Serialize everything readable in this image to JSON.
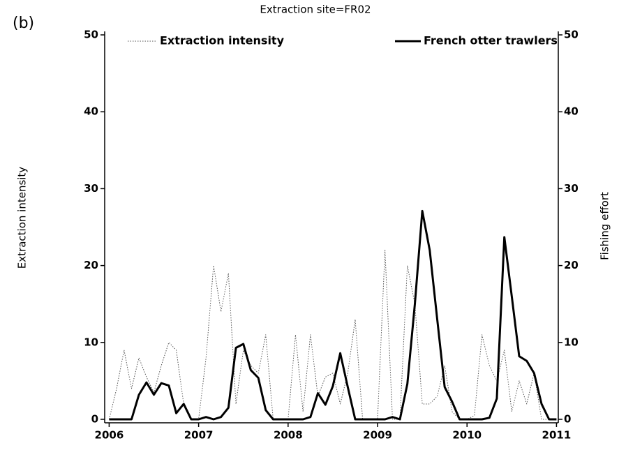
{
  "panel_label": "(b)",
  "chart_data": {
    "type": "line",
    "title": "Extraction site=FR02",
    "ylabel": "Extraction intensity",
    "y2label": "Fishing effort",
    "x": [
      2006,
      2006.083,
      2006.167,
      2006.25,
      2006.333,
      2006.417,
      2006.5,
      2006.583,
      2006.667,
      2006.75,
      2006.833,
      2006.917,
      2007,
      2007.083,
      2007.167,
      2007.25,
      2007.333,
      2007.417,
      2007.5,
      2007.583,
      2007.667,
      2007.75,
      2007.833,
      2007.917,
      2008,
      2008.083,
      2008.167,
      2008.25,
      2008.333,
      2008.417,
      2008.5,
      2008.583,
      2008.667,
      2008.75,
      2008.833,
      2008.917,
      2009,
      2009.083,
      2009.167,
      2009.25,
      2009.333,
      2009.417,
      2009.5,
      2009.583,
      2009.667,
      2009.75,
      2009.833,
      2009.917,
      2010,
      2010.083,
      2010.167,
      2010.25,
      2010.333,
      2010.417,
      2010.5,
      2010.583,
      2010.667,
      2010.75,
      2010.833,
      2010.917,
      2011
    ],
    "series": [
      {
        "name": "Extraction intensity",
        "color": "#555555",
        "style": "dotted",
        "axis": "y",
        "values": [
          0,
          4,
          9,
          4,
          8,
          5.5,
          3.5,
          7,
          10,
          9,
          2,
          0,
          0,
          8,
          20,
          14,
          19,
          2,
          9,
          7,
          6,
          11,
          0,
          0,
          0,
          11,
          1,
          11,
          3,
          5.5,
          6,
          2,
          6,
          13,
          0,
          0,
          0,
          22,
          0,
          0,
          20,
          15,
          2,
          2,
          3,
          7,
          1,
          0,
          0,
          0.5,
          11,
          7,
          5,
          9,
          1,
          5,
          2,
          6,
          0,
          0,
          0
        ]
      },
      {
        "name": "French otter trawlers",
        "color": "#000000",
        "style": "solid",
        "axis": "y2",
        "values": [
          0,
          0,
          0,
          0,
          3.2,
          4.8,
          3.2,
          4.7,
          4.4,
          0.8,
          2,
          0,
          0,
          0.3,
          0,
          0.3,
          1.5,
          9.3,
          9.8,
          6.4,
          5.4,
          1.2,
          0,
          0,
          0,
          0,
          0,
          0.3,
          3.4,
          1.9,
          4.3,
          8.6,
          4.2,
          0,
          0,
          0,
          0,
          0,
          0.3,
          0,
          4.6,
          15,
          27.1,
          22,
          13,
          4.2,
          2.3,
          0,
          0,
          0,
          0,
          0.2,
          2.7,
          23.7,
          16,
          8.2,
          7.6,
          6,
          2,
          0,
          0
        ]
      }
    ],
    "xlim": [
      2005.95,
      2011.02
    ],
    "xticks": [
      2006,
      2007,
      2008,
      2009,
      2010,
      2011
    ],
    "ylim": [
      0,
      50
    ],
    "yticks": [
      0,
      10,
      20,
      30,
      40,
      50
    ],
    "y2lim": [
      0,
      50
    ],
    "y2ticks": [
      0,
      10,
      20,
      30,
      40,
      50
    ]
  }
}
